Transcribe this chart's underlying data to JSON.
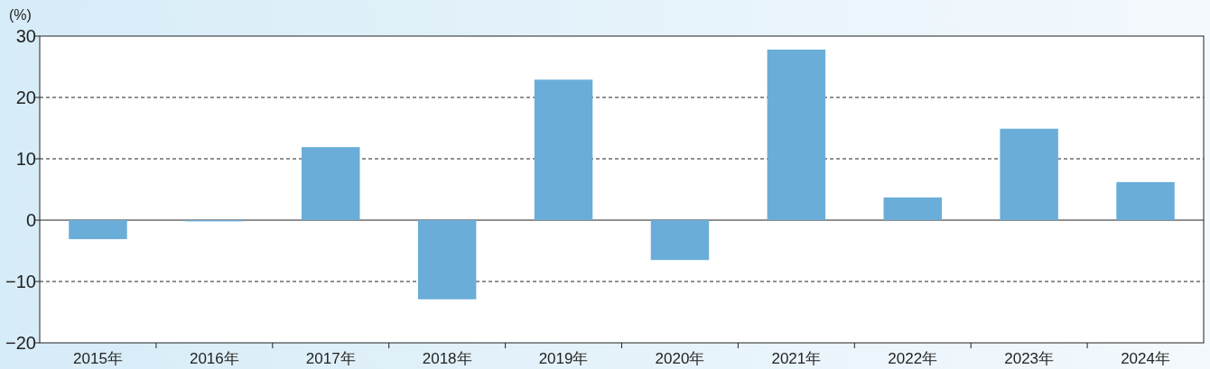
{
  "chart_data": {
    "type": "bar",
    "ylabel": "(%)",
    "categories": [
      "2015年",
      "2016年",
      "2017年",
      "2018年",
      "2019年",
      "2020年",
      "2021年",
      "2022年",
      "2023年",
      "2024年"
    ],
    "values": [
      -3.1,
      -0.2,
      11.9,
      -12.9,
      22.9,
      -6.5,
      27.8,
      3.7,
      14.9,
      6.2
    ],
    "color": "#6aadd8",
    "ylim": [
      -20,
      30
    ],
    "yticks": [
      -20,
      -10,
      0,
      10,
      20,
      30
    ],
    "grid": "y"
  }
}
